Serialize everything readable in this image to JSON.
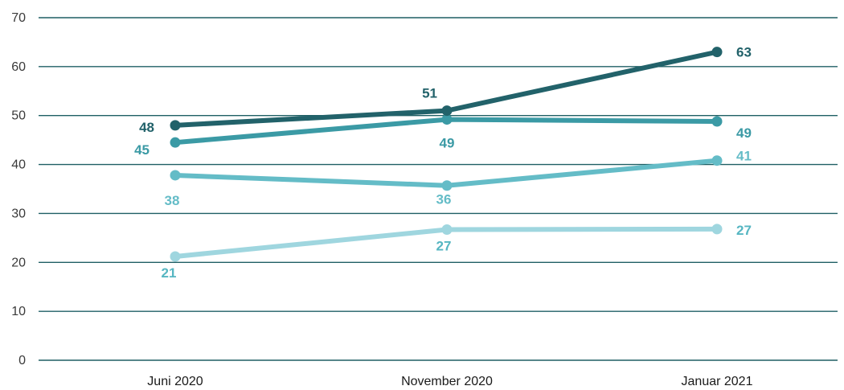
{
  "chart_data": {
    "type": "line",
    "title": "",
    "xlabel": "",
    "ylabel": "",
    "categories": [
      "Juni 2020",
      "November 2020",
      "Januar 2021"
    ],
    "ylim": [
      0,
      70
    ],
    "yticks": [
      0,
      10,
      20,
      30,
      40,
      50,
      60,
      70
    ],
    "grid": true,
    "series": [
      {
        "values": [
          48,
          51,
          63
        ],
        "value_labels": [
          "48",
          "51",
          "63"
        ],
        "color": "#22626a",
        "label_color": "#22626a"
      },
      {
        "values": [
          44.5,
          49.2,
          48.8
        ],
        "value_labels": [
          "45",
          "49",
          "49"
        ],
        "color": "#3b9aa5",
        "label_color": "#3b9aa5"
      },
      {
        "values": [
          37.8,
          35.7,
          40.8
        ],
        "value_labels": [
          "38",
          "36",
          "41"
        ],
        "color": "#64bcc7",
        "label_color": "#64bcc7"
      },
      {
        "values": [
          21.2,
          26.7,
          26.8
        ],
        "value_labels": [
          "21",
          "27",
          "27"
        ],
        "color": "#9fd6df",
        "label_color": "#56b6c2"
      }
    ]
  }
}
